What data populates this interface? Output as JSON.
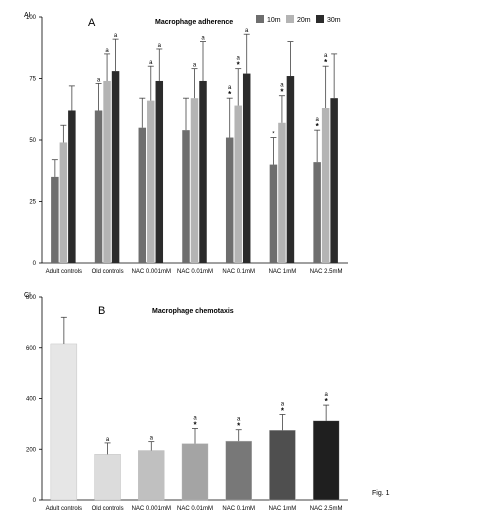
{
  "figure_label": "Fig. 1",
  "chart_data": [
    {
      "type": "bar",
      "panel_label": "A",
      "corner_label": "AI",
      "title": "Macrophage adherence",
      "categories": [
        "Adult controls",
        "Old controls",
        "NAC 0.001mM",
        "NAC 0.01mM",
        "NAC 0.1mM",
        "NAC 1mM",
        "NAC 2.5mM"
      ],
      "series": [
        {
          "name": "10m",
          "color": "#6e6e6e",
          "values": [
            35,
            62,
            55,
            54,
            51,
            40,
            41
          ],
          "errors": [
            7,
            11,
            12,
            13,
            16,
            11,
            13
          ]
        },
        {
          "name": "20m",
          "color": "#b4b4b4",
          "values": [
            49,
            74,
            66,
            67,
            64,
            57,
            63
          ],
          "errors": [
            7,
            11,
            14,
            12,
            15,
            11,
            17
          ]
        },
        {
          "name": "30m",
          "color": "#2b2b2b",
          "values": [
            62,
            78,
            74,
            74,
            77,
            76,
            67
          ],
          "errors": [
            10,
            13,
            13,
            16,
            16,
            14,
            18
          ]
        }
      ],
      "annotations": [
        [
          [
            "",
            ""
          ],
          [
            "",
            ""
          ],
          [
            "",
            ""
          ]
        ],
        [
          [
            "a",
            ""
          ],
          [
            "a",
            ""
          ],
          [
            "a",
            ""
          ]
        ],
        [
          [
            "",
            ""
          ],
          [
            "a",
            ""
          ],
          [
            "a",
            ""
          ]
        ],
        [
          [
            "",
            ""
          ],
          [
            "a",
            ""
          ],
          [
            "a",
            ""
          ]
        ],
        [
          [
            "a",
            "*"
          ],
          [
            "a",
            "*"
          ],
          [
            "a",
            ""
          ]
        ],
        [
          [
            "*",
            ""
          ],
          [
            "a",
            "*"
          ],
          [
            "",
            ""
          ]
        ],
        [
          [
            "a",
            "*"
          ],
          [
            "a",
            "*"
          ],
          [
            "",
            ""
          ]
        ]
      ],
      "ylim": [
        0,
        100
      ],
      "yticks": [
        0,
        25,
        50,
        75,
        100
      ],
      "legend_position": "top-right"
    },
    {
      "type": "bar",
      "panel_label": "B",
      "corner_label": "CI",
      "title": "Macrophage chemotaxis",
      "categories": [
        "Adult controls",
        "Old controls",
        "NAC 0.001mM",
        "NAC 0.01mM",
        "NAC 0.1mM",
        "NAC 1mM",
        "NAC 2.5mM"
      ],
      "values": [
        615,
        180,
        195,
        222,
        232,
        275,
        312
      ],
      "errors": [
        105,
        45,
        35,
        60,
        45,
        62,
        62
      ],
      "colors": [
        "#e6e6e6",
        "#dcdcdc",
        "#c0c0c0",
        "#a4a4a4",
        "#787878",
        "#4f4f4f",
        "#1f1f1f"
      ],
      "annotations": [
        [
          "",
          ""
        ],
        [
          "a",
          ""
        ],
        [
          "a",
          ""
        ],
        [
          "a",
          "*"
        ],
        [
          "a",
          "*"
        ],
        [
          "a",
          "*"
        ],
        [
          "a",
          "*"
        ]
      ],
      "ylim": [
        0,
        800
      ],
      "yticks": [
        0,
        200,
        400,
        600,
        800
      ]
    }
  ]
}
